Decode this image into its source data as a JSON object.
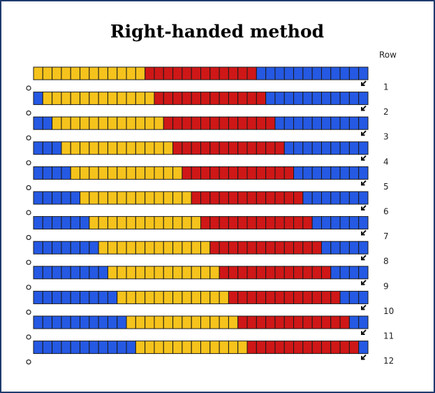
{
  "title": "Right-handed method",
  "column_header": "Row",
  "rows": [
    {
      "label": "1"
    },
    {
      "label": "2"
    },
    {
      "label": "3"
    },
    {
      "label": "4"
    },
    {
      "label": "5"
    },
    {
      "label": "6"
    },
    {
      "label": "7"
    },
    {
      "label": "8"
    },
    {
      "label": "9"
    },
    {
      "label": "10"
    },
    {
      "label": "11"
    },
    {
      "label": "12"
    }
  ]
}
